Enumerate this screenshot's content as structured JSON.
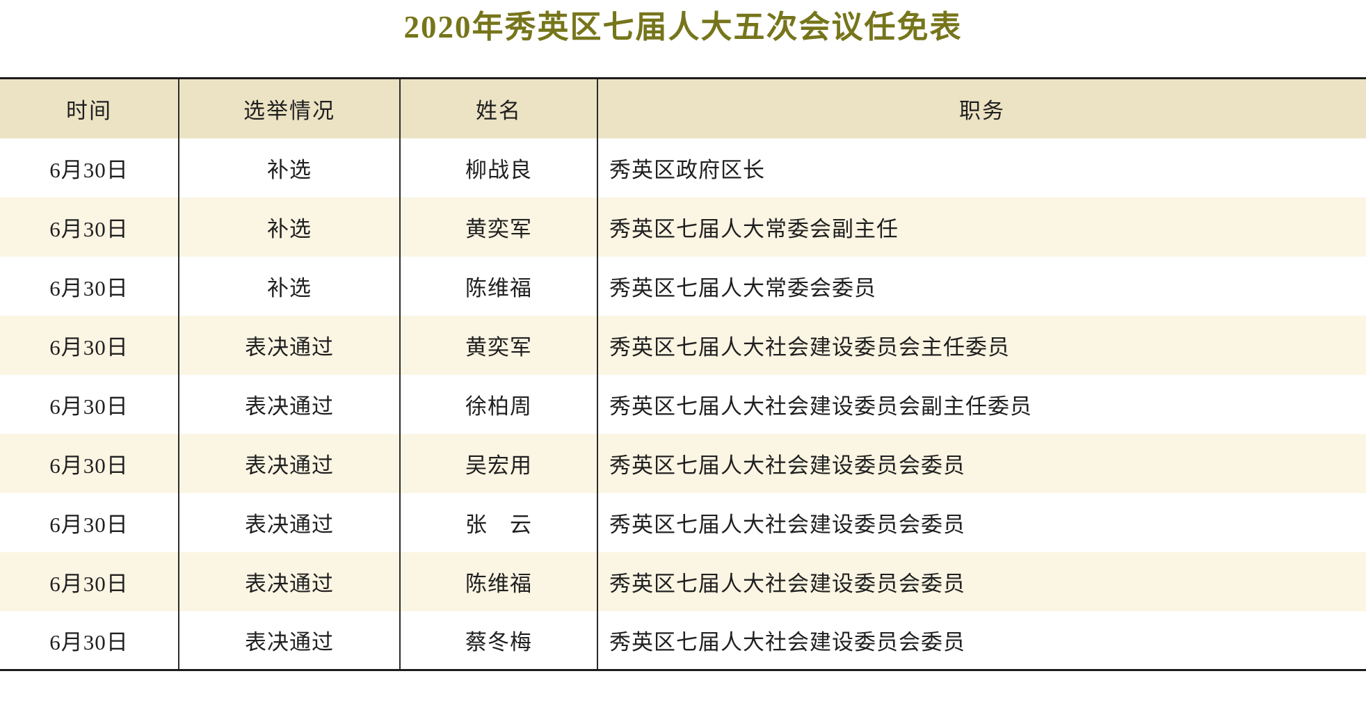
{
  "title": "2020年秀英区七届人大五次会议任免表",
  "colors": {
    "title_text": "#76751b",
    "header_bg": "#ece3c4",
    "row_bg": "#ffffff",
    "row_alt_bg": "#fbf5e3",
    "border_dark": "#1c1c1c",
    "divider": "#2b2b2b",
    "cell_text": "#1f1f1f"
  },
  "table": {
    "columns": [
      {
        "key": "time",
        "label": "时间"
      },
      {
        "key": "election",
        "label": "选举情况"
      },
      {
        "key": "name",
        "label": "姓名"
      },
      {
        "key": "position",
        "label": "职务"
      }
    ],
    "rows": [
      {
        "time": "6月30日",
        "election": "补选",
        "name": "柳战良",
        "position": "秀英区政府区长"
      },
      {
        "time": "6月30日",
        "election": "补选",
        "name": "黄奕军",
        "position": "秀英区七届人大常委会副主任"
      },
      {
        "time": "6月30日",
        "election": "补选",
        "name": "陈维福",
        "position": "秀英区七届人大常委会委员"
      },
      {
        "time": "6月30日",
        "election": "表决通过",
        "name": "黄奕军",
        "position": "秀英区七届人大社会建设委员会主任委员"
      },
      {
        "time": "6月30日",
        "election": "表决通过",
        "name": "徐柏周",
        "position": "秀英区七届人大社会建设委员会副主任委员"
      },
      {
        "time": "6月30日",
        "election": "表决通过",
        "name": "吴宏用",
        "position": "秀英区七届人大社会建设委员会委员"
      },
      {
        "time": "6月30日",
        "election": "表决通过",
        "name": "张　云",
        "position": "秀英区七届人大社会建设委员会委员"
      },
      {
        "time": "6月30日",
        "election": "表决通过",
        "name": "陈维福",
        "position": "秀英区七届人大社会建设委员会委员"
      },
      {
        "time": "6月30日",
        "election": "表决通过",
        "name": "蔡冬梅",
        "position": "秀英区七届人大社会建设委员会委员"
      }
    ]
  }
}
